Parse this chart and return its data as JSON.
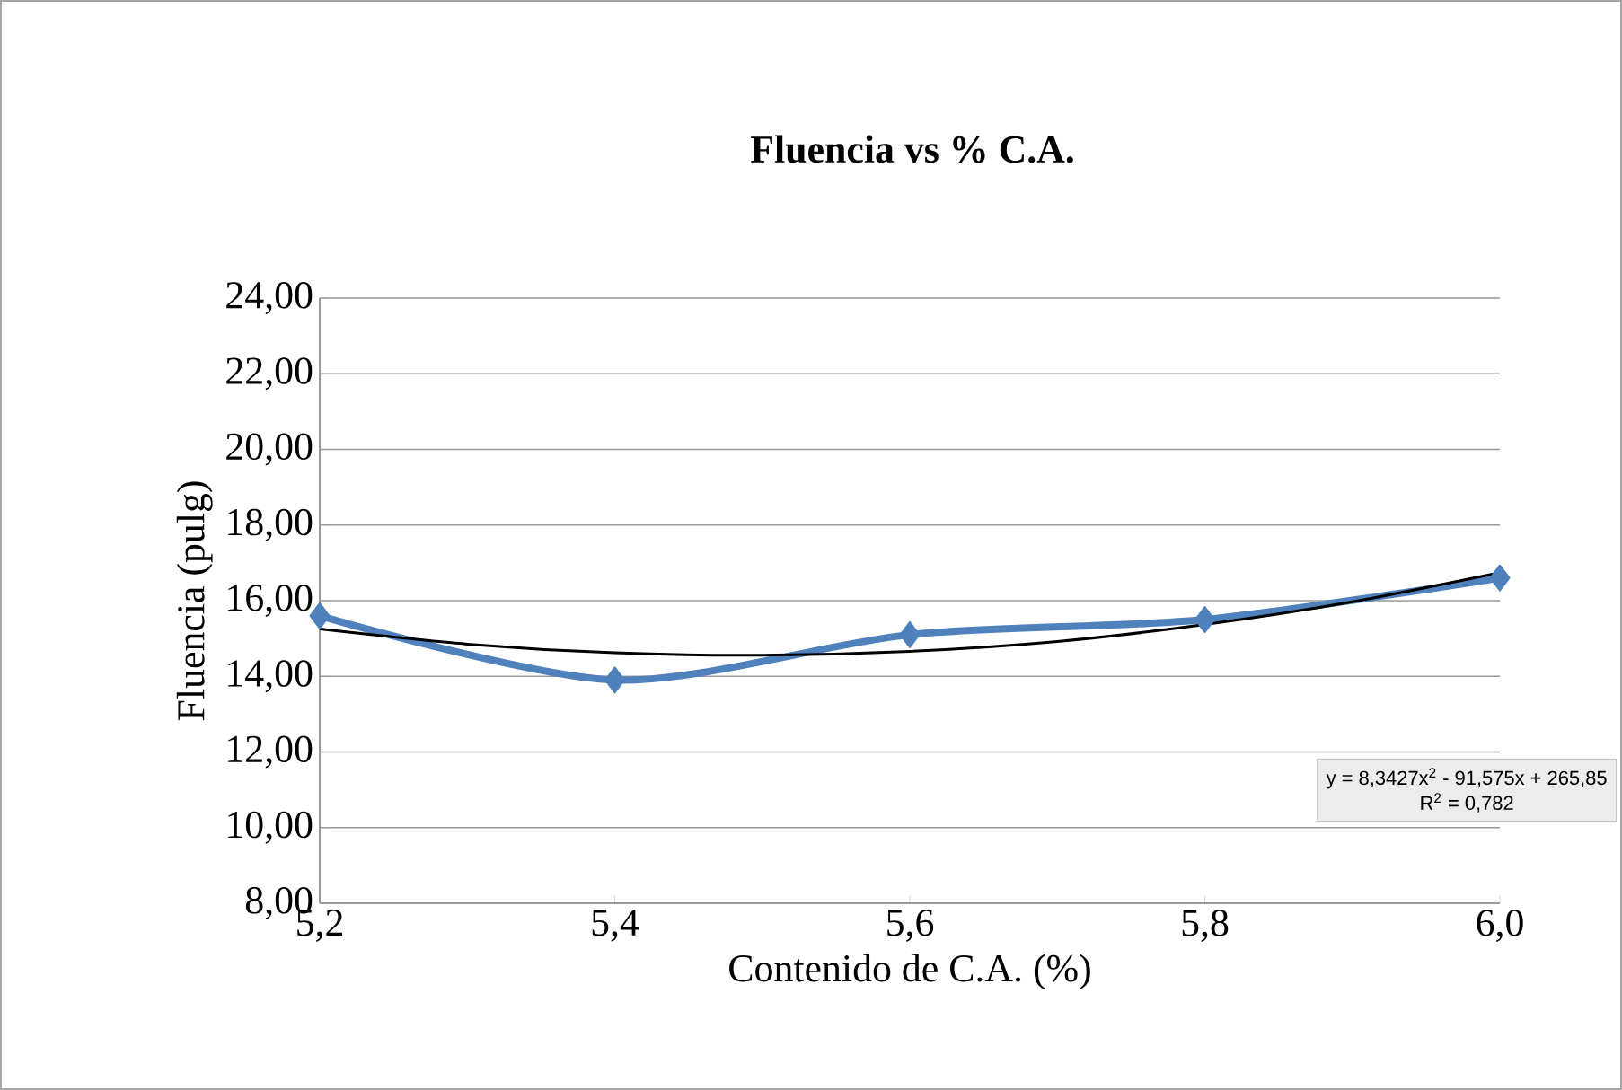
{
  "chart_data": {
    "type": "line",
    "title": "Fluencia vs % C.A.",
    "xlabel": "Contenido de C.A. (%)",
    "ylabel": "Fluencia (pulg)",
    "x": [
      5.2,
      5.4,
      5.6,
      5.8,
      6.0
    ],
    "series": [
      {
        "color": "#4f81bd",
        "values": [
          15.6,
          13.9,
          15.1,
          15.5,
          16.6
        ]
      },
      {
        "color": "#000000",
        "marker": "none",
        "x": [
          5.2,
          5.3,
          5.4,
          5.5,
          5.6,
          5.7,
          5.8,
          5.9,
          6.0
        ],
        "values": [
          15.25,
          14.85,
          14.62,
          14.56,
          14.66,
          14.92,
          15.37,
          15.97,
          16.74
        ]
      }
    ],
    "xlim": [
      5.2,
      6.0
    ],
    "xticks": [
      {
        "value": 5.2,
        "label": "5,2"
      },
      {
        "value": 5.4,
        "label": "5,4"
      },
      {
        "value": 5.6,
        "label": "5,6"
      },
      {
        "value": 5.8,
        "label": "5,8"
      },
      {
        "value": 6.0,
        "label": "6,0"
      }
    ],
    "ylim": [
      8,
      24
    ],
    "yticks": [
      {
        "value": 8,
        "label": "8,00"
      },
      {
        "value": 10,
        "label": "10,00"
      },
      {
        "value": 12,
        "label": "12,00"
      },
      {
        "value": 14,
        "label": "14,00"
      },
      {
        "value": 16,
        "label": "16,00"
      },
      {
        "value": 18,
        "label": "18,00"
      },
      {
        "value": 20,
        "label": "20,00"
      },
      {
        "value": 22,
        "label": "22,00"
      },
      {
        "value": 24,
        "label": "24,00"
      }
    ],
    "grid": "y",
    "marker": "diamond",
    "annotations": [
      "y = 8,3427x$^{2}$ - 91,575x + 265,85",
      "R$^{2}$ = 0,782"
    ]
  }
}
